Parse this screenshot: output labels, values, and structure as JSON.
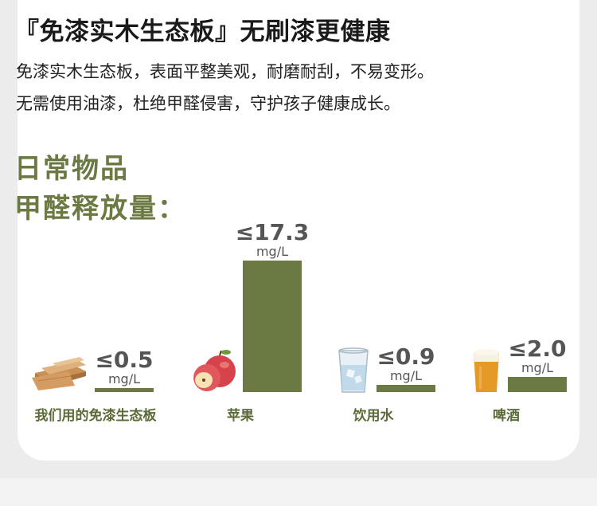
{
  "header": {
    "headline": "『免漆实木生态板』无刷漆更健康",
    "desc_line1": "免漆实木生态板，表面平整美观，耐磨耐刮，不易变形。",
    "desc_line2": "无需使用油漆，杜绝甲醛侵害，守护孩子健康成长。",
    "subhead_line1": "日常物品",
    "subhead_line2": "甲醛释放量："
  },
  "colors": {
    "bar": "#6b7a42",
    "accent": "#6b7a42",
    "label": "#5a6a38",
    "value_text": "#555555"
  },
  "chart_data": {
    "type": "bar",
    "categories": [
      "我们用的免漆生态板",
      "苹果",
      "饮用水",
      "啤酒"
    ],
    "values": [
      0.5,
      17.3,
      0.9,
      2.0
    ],
    "value_labels": [
      "≤0.5",
      "≤17.3",
      "≤0.9",
      "≤2.0"
    ],
    "unit": "mg/L",
    "icons": [
      "wood-board-icon",
      "apple-icon",
      "water-glass-icon",
      "beer-glass-icon"
    ],
    "title": "",
    "xlabel": "",
    "ylabel": "",
    "ylim": [
      0,
      17.3
    ],
    "grid": false,
    "legend": "none"
  }
}
